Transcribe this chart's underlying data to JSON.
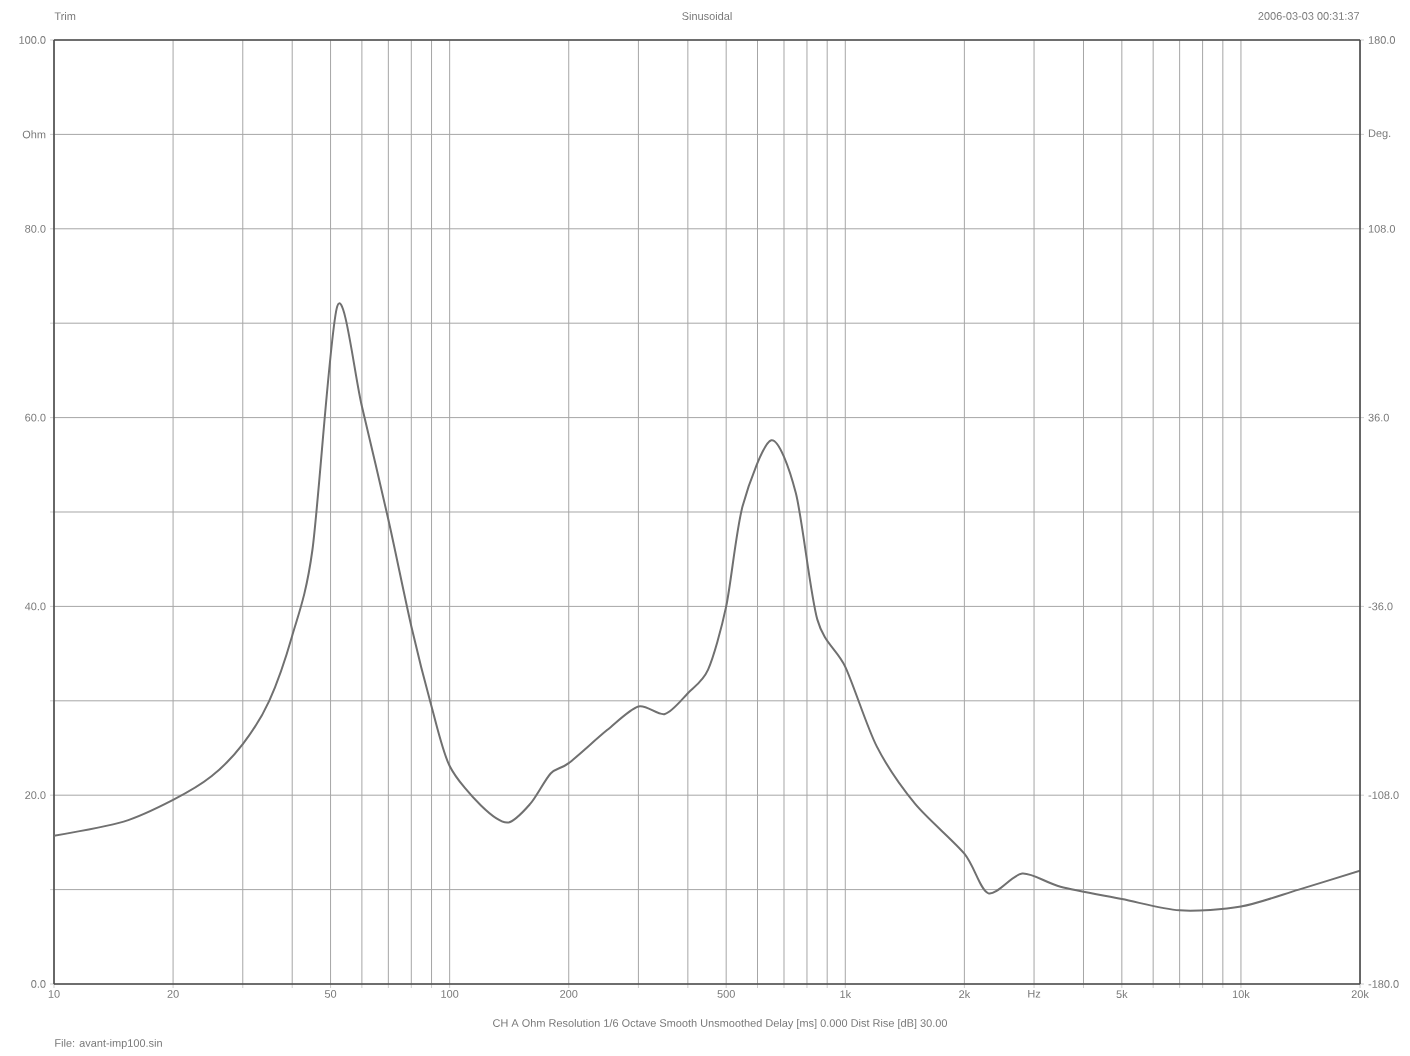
{
  "chart_data": {
    "type": "line",
    "title": "Sinusoidal",
    "annotations": [
      "Trim",
      "2006-03-03 00:31:37",
      "CH A   Ohm   Resolution 1/6 Octave   Smooth Unsmoothed   Delay [ms] 0.000   Dist Rise [dB] 30.00",
      "File: avant-imp100.sin"
    ],
    "x": [
      10,
      15,
      20,
      25,
      30,
      35,
      40,
      45,
      52,
      60,
      70,
      80,
      90,
      100,
      120,
      140,
      160,
      180,
      200,
      250,
      300,
      350,
      400,
      450,
      500,
      550,
      650,
      750,
      850,
      1000,
      1200,
      1500,
      2000,
      2300,
      2800,
      3500,
      5000,
      7000,
      10000,
      14000,
      20000
    ],
    "series": [
      {
        "color": "#707070",
        "values": [
          15.7,
          17.2,
          19.5,
          22,
          25.4,
          30,
          36.9,
          46,
          71.8,
          61.2,
          49.2,
          37.9,
          29.4,
          23.1,
          18.9,
          17.1,
          19.1,
          22.3,
          23.4,
          26.9,
          29.4,
          28.6,
          30.8,
          33.3,
          40,
          50.6,
          57.6,
          52,
          38.6,
          33.6,
          25.2,
          19.1,
          13.8,
          9.6,
          11.7,
          10.3,
          9.0,
          7.8,
          8.2,
          10.0,
          12.0
        ]
      }
    ],
    "log": "x",
    "grid": true,
    "line_style": "solid",
    "marker": "none",
    "xlim": [
      10,
      20000
    ],
    "xticks": [
      10,
      20,
      {
        "value": 30,
        "label": null
      },
      {
        "value": 40,
        "label": null
      },
      50,
      {
        "value": 60,
        "label": null
      },
      {
        "value": 70,
        "label": null
      },
      {
        "value": 80,
        "label": null
      },
      {
        "value": 90,
        "label": null
      },
      100,
      200,
      {
        "value": 300,
        "label": null
      },
      {
        "value": 400,
        "label": null
      },
      500,
      {
        "value": 600,
        "label": null
      },
      {
        "value": 700,
        "label": null
      },
      {
        "value": 800,
        "label": null
      },
      {
        "value": 900,
        "label": null
      },
      {
        "value": 1000,
        "label": "1k"
      },
      {
        "value": 2000,
        "label": "2k"
      },
      {
        "value": 3000,
        "label": "Hz"
      },
      {
        "value": 4000,
        "label": null
      },
      {
        "value": 5000,
        "label": "5k"
      },
      {
        "value": 6000,
        "label": null
      },
      {
        "value": 7000,
        "label": null
      },
      {
        "value": 8000,
        "label": null
      },
      {
        "value": 9000,
        "label": null
      },
      {
        "value": 10000,
        "label": "10k"
      },
      {
        "value": 20000,
        "label": "20k"
      }
    ],
    "ylim": [
      0,
      100
    ],
    "yticks": [
      {
        "value": 0,
        "label": "0.0"
      },
      {
        "value": 10,
        "label": null
      },
      {
        "value": 20,
        "label": "20.0"
      },
      {
        "value": 30,
        "label": null
      },
      {
        "value": 40,
        "label": "40.0"
      },
      {
        "value": 50,
        "label": null
      },
      {
        "value": 60,
        "label": "60.0"
      },
      {
        "value": 70,
        "label": null
      },
      {
        "value": 80,
        "label": "80.0"
      },
      {
        "value": 90,
        "label": "Ohm"
      },
      {
        "value": 100,
        "label": "100.0"
      }
    ],
    "y2lim": [
      -180,
      180
    ],
    "y2ticks": [
      {
        "value": -180,
        "label": "-180.0"
      },
      {
        "value": -108,
        "label": "-108.0"
      },
      {
        "value": -36,
        "label": "-36.0"
      },
      {
        "value": 36,
        "label": "36.0"
      },
      {
        "value": 108,
        "label": "108.0"
      },
      {
        "value": 144,
        "label": "Deg."
      },
      {
        "value": 180,
        "label": "180.0"
      }
    ]
  }
}
